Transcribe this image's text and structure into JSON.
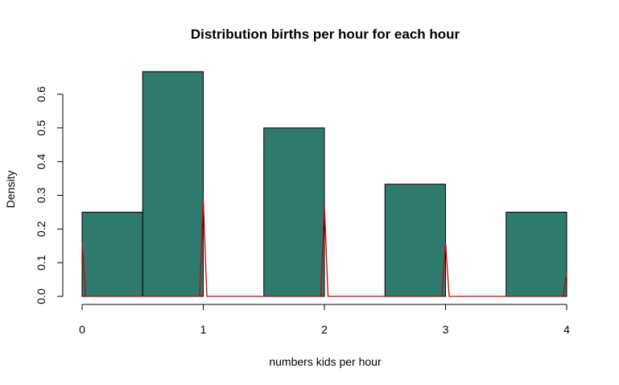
{
  "chart_data": {
    "type": "bar",
    "title": "Distribution births per hour for each hour",
    "xlabel": "numbers kids per hour",
    "ylabel": "Density",
    "xlim": [
      0,
      4
    ],
    "ylim": [
      0,
      0.6
    ],
    "x_ticks": [
      "0",
      "1",
      "2",
      "3",
      "4"
    ],
    "y_ticks": [
      "0.0",
      "0.1",
      "0.2",
      "0.3",
      "0.4",
      "0.5",
      "0.6"
    ],
    "bar_color": "#2e7b6e",
    "bar_edge_color": "#000000",
    "line_color": "#cc0000",
    "histogram": {
      "bins": [
        {
          "from": 0.0,
          "to": 0.5,
          "density": 0.25
        },
        {
          "from": 0.5,
          "to": 1.0,
          "density": 0.667
        },
        {
          "from": 1.5,
          "to": 2.0,
          "density": 0.5
        },
        {
          "from": 2.5,
          "to": 3.0,
          "density": 0.333
        },
        {
          "from": 3.5,
          "to": 4.0,
          "density": 0.25
        }
      ]
    },
    "series": [
      {
        "type": "line",
        "x": [
          0.0,
          0.03,
          0.97,
          1.0,
          1.03,
          1.97,
          2.0,
          2.03,
          2.97,
          3.0,
          3.03,
          3.97,
          4.0
        ],
        "y": [
          0.16,
          0.0,
          0.0,
          0.29,
          0.0,
          0.0,
          0.27,
          0.0,
          0.0,
          0.16,
          0.0,
          0.0,
          0.07
        ]
      }
    ]
  }
}
